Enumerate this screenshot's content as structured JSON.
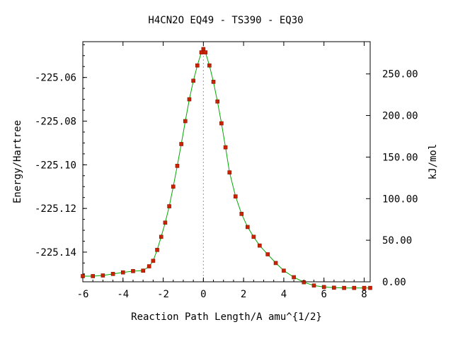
{
  "chart_data": {
    "type": "line",
    "title": "H4CN2O   EQ49 - TS390 - EQ30",
    "xlabel": "Reaction Path Length/A amu^{1/2}",
    "ylabel": "Energy/Hartree",
    "y2label": "kJ/mol",
    "xlim": [
      -6,
      8.3
    ],
    "ylim": [
      -225.1536,
      -225.0436
    ],
    "y2lim": [
      0,
      288.8
    ],
    "x_ticks": [
      -6,
      -4,
      -2,
      0,
      2,
      4,
      6,
      8
    ],
    "x_tick_labels": [
      "-6",
      "-4",
      "-2",
      "0",
      "2",
      "4",
      "6",
      "8"
    ],
    "y_ticks": [
      -225.06,
      -225.08,
      -225.1,
      -225.12,
      -225.14
    ],
    "y_tick_labels": [
      "-225.06",
      "-225.08",
      "-225.10",
      "-225.12",
      "-225.14"
    ],
    "y2_ticks": [
      250,
      200,
      150,
      100,
      50,
      0
    ],
    "y2_tick_labels": [
      "250.00",
      "200.00",
      "150.00",
      "100.00",
      "50.00",
      "0.00"
    ],
    "ts_marker_x": 0,
    "line_color": "#00aa00",
    "point_color": "#cc2200",
    "ts_line_color": "#999999",
    "series": [
      {
        "x": [
          -6.0,
          -5.5,
          -5.0,
          -4.5,
          -4.0,
          -3.5,
          -3.0,
          -2.7,
          -2.5,
          -2.3,
          -2.1,
          -1.9,
          -1.7,
          -1.5,
          -1.3,
          -1.1,
          -0.9,
          -0.7,
          -0.5,
          -0.3,
          -0.1,
          0.0,
          0.1,
          0.3,
          0.5,
          0.7,
          0.9,
          1.1,
          1.3,
          1.6,
          1.9,
          2.2,
          2.5,
          2.8,
          3.2,
          3.6,
          4.0,
          4.5,
          5.0,
          5.5,
          6.0,
          6.5,
          7.0,
          7.5,
          8.0,
          8.3
        ],
        "y": [
          -225.151,
          -225.151,
          -225.1507,
          -225.15,
          -225.1493,
          -225.1487,
          -225.1485,
          -225.1465,
          -225.144,
          -225.139,
          -225.133,
          -225.1265,
          -225.119,
          -225.11,
          -225.1005,
          -225.0905,
          -225.08,
          -225.07,
          -225.0615,
          -225.0545,
          -225.0485,
          -225.047,
          -225.0485,
          -225.0545,
          -225.062,
          -225.071,
          -225.081,
          -225.092,
          -225.1035,
          -225.1145,
          -225.1225,
          -225.1285,
          -225.133,
          -225.137,
          -225.141,
          -225.145,
          -225.1485,
          -225.1515,
          -225.1538,
          -225.1553,
          -225.156,
          -225.1563,
          -225.1564,
          -225.1564,
          -225.1564,
          -225.1564
        ]
      }
    ]
  }
}
